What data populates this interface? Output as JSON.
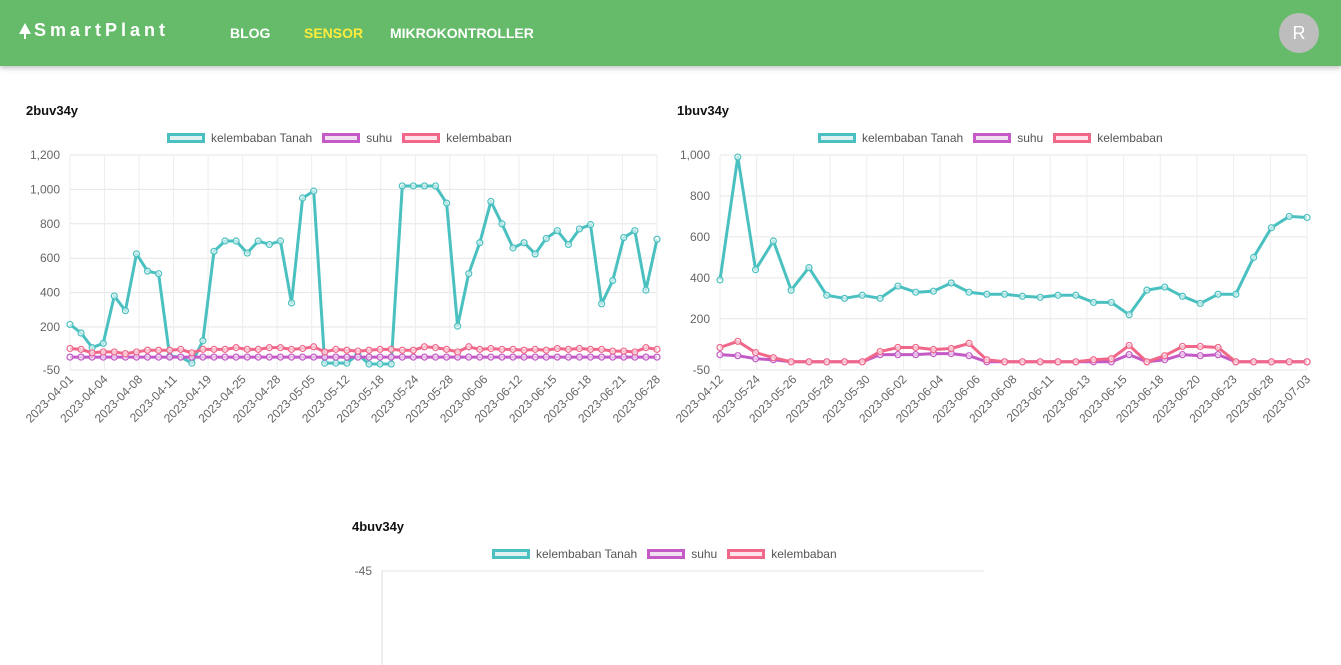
{
  "navbar": {
    "brand": "SmartPlant",
    "links": [
      "BLOG",
      "SENSOR",
      "MIKROKONTROLLER"
    ],
    "active": "SENSOR",
    "avatar_letter": "R"
  },
  "legend_labels": [
    "kelembaban Tanah",
    "suhu",
    "kelembaban"
  ],
  "colors": {
    "navbar": "#66bb6a",
    "tanah": "#4bc0c0",
    "suhu": "#c45ac6",
    "kelembaban": "#f06789",
    "active_link": "#ffeb3b"
  },
  "chart_data": [
    {
      "type": "line",
      "title": "2buv34y",
      "ylim": [
        -50,
        1200
      ],
      "yticks": [
        -50,
        200,
        400,
        600,
        800,
        1000,
        1200
      ],
      "ytick_labels": [
        "-50",
        "200",
        "400",
        "600",
        "800",
        "1,000",
        "1,200"
      ],
      "xtick_labels": [
        "2023-04-01",
        "2023-04-04",
        "2023-04-08",
        "2023-04-11",
        "2023-04-19",
        "2023-04-25",
        "2023-04-28",
        "2023-05-05",
        "2023-05-12",
        "2023-05-18",
        "2023-05-24",
        "2023-05-28",
        "2023-06-06",
        "2023-06-12",
        "2023-06-15",
        "2023-06-18",
        "2023-06-21",
        "2023-06-28"
      ],
      "series": [
        {
          "name": "kelembaban Tanah",
          "values": [
            215,
            165,
            80,
            105,
            380,
            295,
            625,
            525,
            510,
            30,
            25,
            -10,
            120,
            640,
            700,
            700,
            630,
            700,
            680,
            700,
            340,
            950,
            990,
            -10,
            -10,
            -10,
            40,
            -15,
            -15,
            -15,
            1020,
            1020,
            1020,
            1020,
            920,
            205,
            510,
            690,
            930,
            800,
            660,
            690,
            625,
            715,
            760,
            680,
            770,
            795,
            335,
            470,
            720,
            760,
            415,
            710
          ]
        },
        {
          "name": "suhu",
          "values": [
            25,
            25,
            25,
            25,
            25,
            25,
            25,
            25,
            25,
            25,
            25,
            25,
            25,
            25,
            25,
            25,
            25,
            25,
            25,
            25,
            25,
            25,
            25,
            25,
            25,
            25,
            25,
            25,
            25,
            25,
            25,
            25,
            25,
            25,
            25,
            25,
            25,
            25,
            25,
            25,
            25,
            25,
            25,
            25,
            25,
            25,
            25,
            25,
            25,
            25,
            25,
            25,
            25,
            25
          ]
        },
        {
          "name": "kelembaban",
          "values": [
            75,
            70,
            50,
            55,
            55,
            45,
            55,
            65,
            65,
            65,
            70,
            50,
            70,
            70,
            70,
            80,
            70,
            70,
            80,
            80,
            70,
            75,
            85,
            55,
            70,
            65,
            60,
            65,
            70,
            70,
            65,
            65,
            85,
            80,
            70,
            55,
            85,
            70,
            75,
            70,
            70,
            65,
            70,
            65,
            75,
            70,
            75,
            70,
            70,
            60,
            60,
            55,
            80,
            70
          ]
        }
      ]
    },
    {
      "type": "line",
      "title": "1buv34y",
      "ylim": [
        -50,
        1000
      ],
      "yticks": [
        -50,
        200,
        400,
        600,
        800,
        1000
      ],
      "ytick_labels": [
        "-50",
        "200",
        "400",
        "600",
        "800",
        "1,000"
      ],
      "xtick_labels": [
        "2023-04-12",
        "2023-05-24",
        "2023-05-26",
        "2023-05-28",
        "2023-05-30",
        "2023-06-02",
        "2023-06-04",
        "2023-06-06",
        "2023-06-08",
        "2023-06-11",
        "2023-06-13",
        "2023-06-15",
        "2023-06-18",
        "2023-06-20",
        "2023-06-23",
        "2023-06-28",
        "2023-07-03"
      ],
      "series": [
        {
          "name": "kelembaban Tanah",
          "values": [
            390,
            990,
            440,
            580,
            340,
            450,
            315,
            300,
            315,
            300,
            360,
            330,
            335,
            375,
            330,
            320,
            320,
            310,
            305,
            315,
            315,
            280,
            280,
            220,
            340,
            355,
            310,
            275,
            320,
            320,
            500,
            645,
            700,
            695
          ]
        },
        {
          "name": "suhu",
          "values": [
            25,
            20,
            5,
            0,
            -10,
            -10,
            -10,
            -10,
            -10,
            25,
            25,
            25,
            30,
            30,
            20,
            -10,
            -10,
            -10,
            -10,
            -10,
            -10,
            -10,
            -10,
            25,
            -10,
            0,
            25,
            20,
            25,
            -10,
            -10,
            -10,
            -10,
            -10
          ]
        },
        {
          "name": "kelembaban",
          "values": [
            60,
            90,
            35,
            10,
            -10,
            -10,
            -10,
            -10,
            -10,
            40,
            60,
            60,
            50,
            55,
            80,
            0,
            -10,
            -10,
            -10,
            -10,
            -10,
            0,
            5,
            70,
            -10,
            20,
            65,
            65,
            60,
            -10,
            -10,
            -10,
            -10,
            -10
          ]
        }
      ]
    },
    {
      "type": "line",
      "title": "4buv34y",
      "yticks": [
        -45
      ],
      "ytick_labels": [
        "-45"
      ],
      "series": [
        {
          "name": "kelembaban Tanah",
          "values": []
        },
        {
          "name": "suhu",
          "values": []
        },
        {
          "name": "kelembaban",
          "values": []
        }
      ]
    }
  ]
}
